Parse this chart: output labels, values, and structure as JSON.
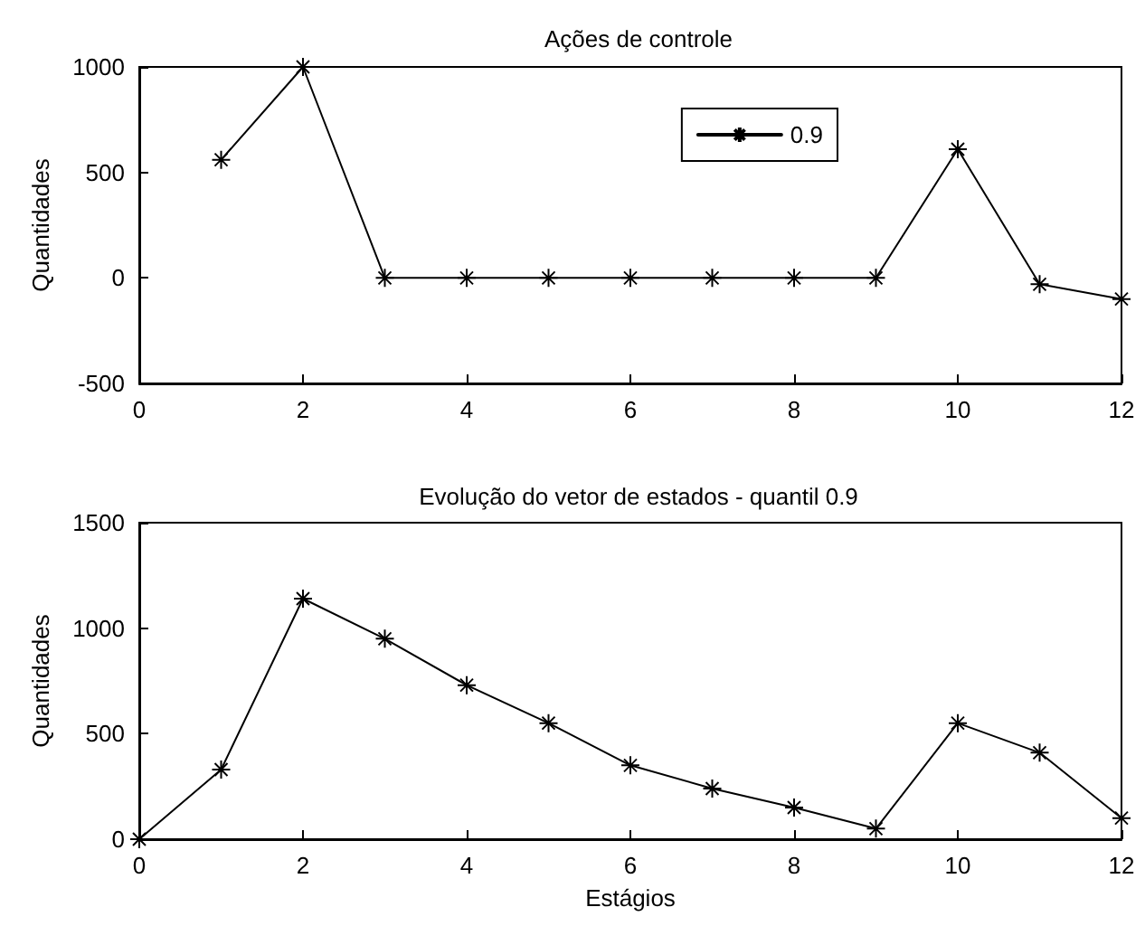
{
  "chart_data": [
    {
      "type": "line",
      "title": "Ações de controle",
      "ylabel": "Quantidades",
      "x": [
        1,
        2,
        3,
        4,
        5,
        6,
        7,
        8,
        9,
        10,
        11,
        12
      ],
      "series": [
        {
          "name": "0.9",
          "color": "#000000",
          "values": [
            560,
            1000,
            0,
            0,
            0,
            0,
            0,
            0,
            0,
            610,
            -30,
            -100
          ]
        }
      ],
      "xlim": [
        0,
        12
      ],
      "xticks": [
        0,
        2,
        4,
        6,
        8,
        10,
        12
      ],
      "ylim": [
        -500,
        1000
      ],
      "yticks": [
        -500,
        0,
        500,
        1000
      ],
      "grid": false,
      "legend": "top right",
      "marker": "cross",
      "line_style": "solid"
    },
    {
      "type": "line",
      "title": "Evolução do vetor de estados - quantil 0.9",
      "xlabel": "Estágios",
      "ylabel": "Quantidades",
      "x": [
        0,
        1,
        2,
        3,
        4,
        5,
        6,
        7,
        8,
        9,
        10,
        11,
        12
      ],
      "series": [
        {
          "color": "#000000",
          "values": [
            0,
            330,
            1140,
            950,
            730,
            550,
            350,
            240,
            150,
            50,
            550,
            410,
            100
          ]
        }
      ],
      "xlim": [
        0,
        12
      ],
      "xticks": [
        0,
        2,
        4,
        6,
        8,
        10,
        12
      ],
      "ylim": [
        0,
        1500
      ],
      "yticks": [
        0,
        500,
        1000,
        1500
      ],
      "grid": false,
      "legend": false,
      "marker": "cross",
      "line_style": "solid"
    }
  ]
}
